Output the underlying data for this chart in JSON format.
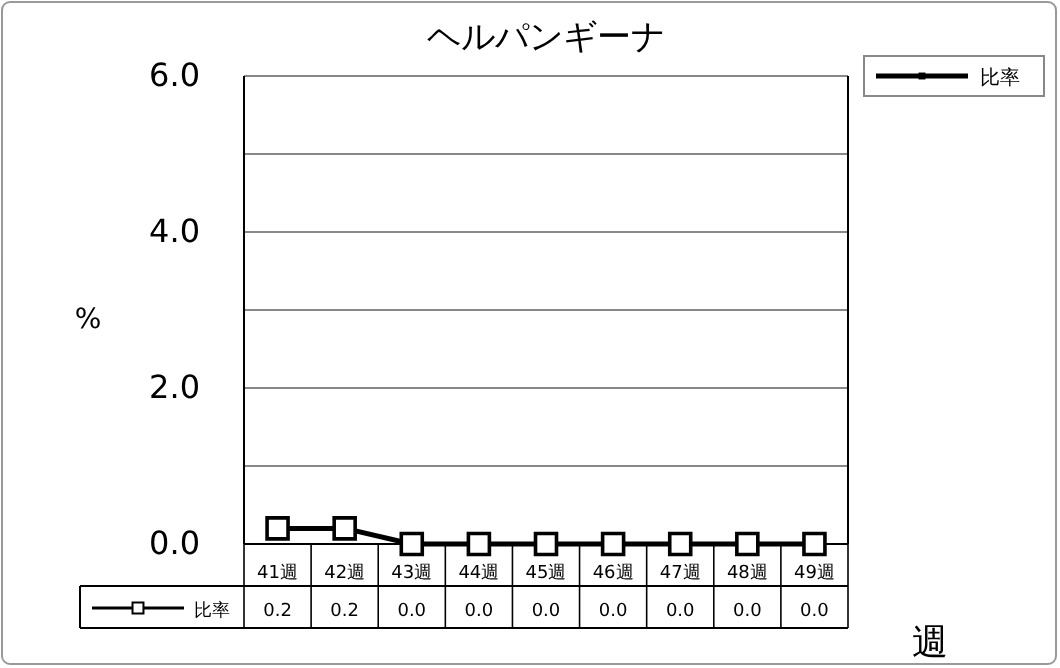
{
  "chart_data": {
    "type": "line",
    "title": "ヘルパンギーナ",
    "xlabel": "週",
    "ylabel": "%",
    "categories": [
      "41週",
      "42週",
      "43週",
      "44週",
      "45週",
      "46週",
      "47週",
      "48週",
      "49週"
    ],
    "series": [
      {
        "name": "比率",
        "color": "#000000",
        "values": [
          0.2,
          0.2,
          0,
          0,
          0,
          0,
          0,
          0,
          0
        ],
        "value_labels": [
          "0.2",
          "0.2",
          "0.0",
          "0.0",
          "0.0",
          "0.0",
          "0.0",
          "0.0",
          "0.0"
        ]
      }
    ],
    "ylim": [
      0,
      6
    ],
    "yticks": [
      {
        "value": 0,
        "label": "0.0"
      },
      {
        "value": 1,
        "label": null
      },
      {
        "value": 2,
        "label": "2.0"
      },
      {
        "value": 3,
        "label": null
      },
      {
        "value": 4,
        "label": "4.0"
      },
      {
        "value": 5,
        "label": null
      },
      {
        "value": 6,
        "label": "6.0"
      }
    ],
    "grid": "y",
    "legend": "top right",
    "marker": "square",
    "line_style": "solid"
  }
}
